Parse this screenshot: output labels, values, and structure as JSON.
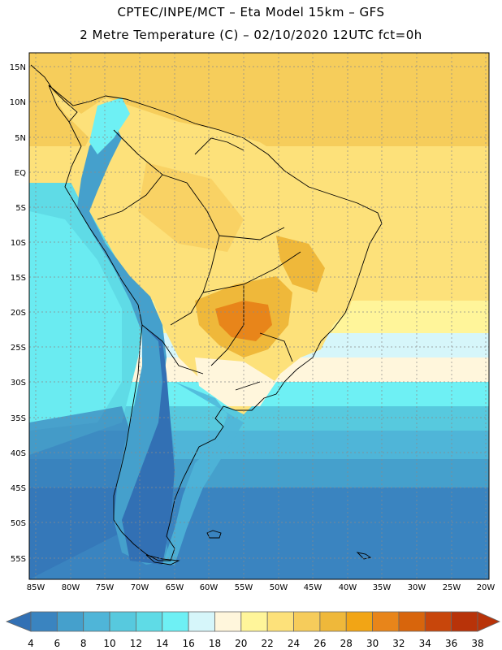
{
  "header": {
    "title_line1": "CPTEC/INPE/MCT –  Eta Model 15km – GFS",
    "title_line2": "2 Metre Temperature (C) – 02/10/2020 12UTC fct=0h"
  },
  "map": {
    "lat_labels": [
      "15N",
      "10N",
      "5N",
      "EQ",
      "5S",
      "10S",
      "15S",
      "20S",
      "25S",
      "30S",
      "35S",
      "40S",
      "45S",
      "50S",
      "55S"
    ],
    "lon_labels": [
      "85W",
      "80W",
      "75W",
      "70W",
      "65W",
      "60W",
      "55W",
      "50W",
      "45W",
      "40W",
      "35W",
      "30W",
      "25W",
      "20W"
    ]
  },
  "colorbar": {
    "labels": [
      "4",
      "6",
      "8",
      "10",
      "12",
      "14",
      "16",
      "18",
      "20",
      "22",
      "24",
      "26",
      "28",
      "30",
      "32",
      "34",
      "36",
      "38"
    ],
    "colors": [
      "#3270b4",
      "#3a84c0",
      "#45a0cc",
      "#4fb5d8",
      "#57c9de",
      "#5fdbe6",
      "#6ef0f4",
      "#d6f6fa",
      "#fff6dc",
      "#fff59a",
      "#fde17a",
      "#f6cc5b",
      "#efb83a",
      "#f2a515",
      "#e8851a",
      "#d8650c",
      "#c8460b",
      "#b83309"
    ]
  },
  "regions": {
    "ocean_north": "#f6cd5b",
    "ocean_south": "#3a84c0",
    "continent_warm": "#fde17a",
    "continent_hot": "#efb83a",
    "andes_cold": "#4fb5d8"
  }
}
